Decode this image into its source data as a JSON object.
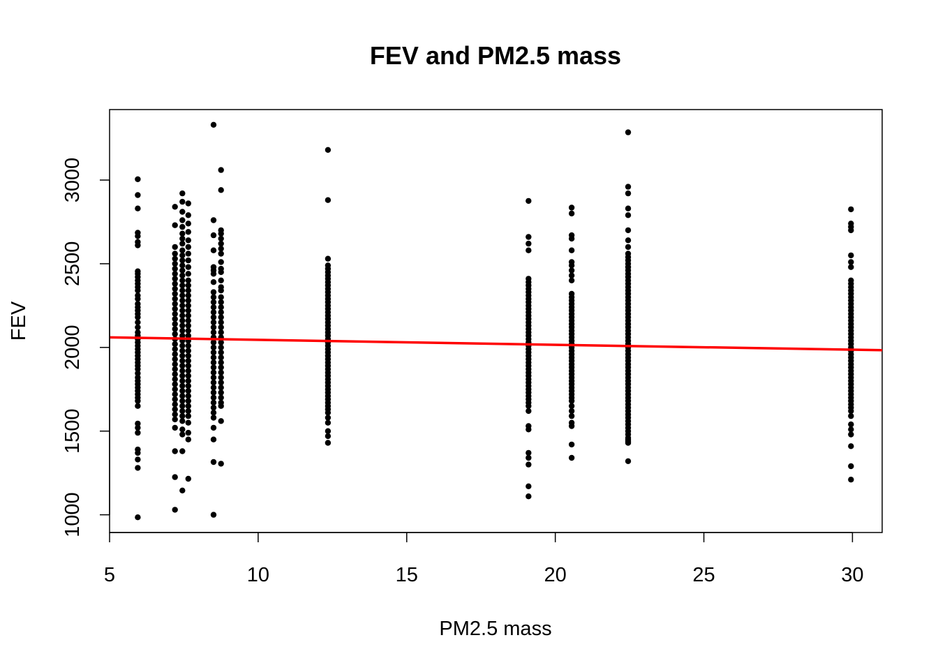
{
  "chart_data": {
    "type": "scatter",
    "title": "FEV and PM2.5 mass",
    "xlabel": "PM2.5 mass",
    "ylabel": "FEV",
    "xlim": [
      5,
      31
    ],
    "ylim": [
      894,
      3421
    ],
    "x_ticks": [
      5,
      10,
      15,
      20,
      25,
      30
    ],
    "y_ticks": [
      1000,
      1500,
      2000,
      2500,
      3000
    ],
    "grid": false,
    "legend": "none",
    "point_color": "#000000",
    "groups": [
      {
        "x": 5.95,
        "values": [
          3005,
          2910,
          2830,
          2685,
          2665,
          2630,
          2610,
          2455,
          2440,
          2420,
          2400,
          2380,
          2360,
          2340,
          2310,
          2290,
          2260,
          2240,
          2220,
          2200,
          2180,
          2150,
          2120,
          2090,
          2070,
          2050,
          2030,
          2010,
          1990,
          1970,
          1950,
          1930,
          1910,
          1890,
          1870,
          1845,
          1820,
          1800,
          1780,
          1760,
          1740,
          1720,
          1700,
          1680,
          1650,
          1545,
          1520,
          1490,
          1390,
          1370,
          1330,
          1280,
          985
        ]
      },
      {
        "x": 7.2,
        "values": [
          2840,
          2730,
          2600,
          2560,
          2530,
          2500,
          2470,
          2440,
          2410,
          2380,
          2350,
          2320,
          2290,
          2260,
          2230,
          2200,
          2170,
          2140,
          2110,
          2080,
          2050,
          2020,
          1990,
          1960,
          1930,
          1900,
          1870,
          1840,
          1810,
          1780,
          1750,
          1720,
          1690,
          1660,
          1630,
          1600,
          1570,
          1520,
          1380,
          1225,
          1030
        ]
      },
      {
        "x": 7.45,
        "values": [
          2920,
          2870,
          2810,
          2760,
          2720,
          2680,
          2650,
          2620,
          2580,
          2550,
          2520,
          2490,
          2460,
          2430,
          2400,
          2370,
          2340,
          2310,
          2280,
          2250,
          2220,
          2190,
          2160,
          2130,
          2100,
          2070,
          2040,
          2010,
          1980,
          1950,
          1920,
          1890,
          1860,
          1830,
          1800,
          1770,
          1740,
          1710,
          1680,
          1650,
          1620,
          1590,
          1560,
          1510,
          1480,
          1380,
          1145
        ]
      },
      {
        "x": 7.65,
        "values": [
          2860,
          2790,
          2740,
          2690,
          2640,
          2600,
          2560,
          2520,
          2480,
          2440,
          2400,
          2370,
          2340,
          2310,
          2280,
          2250,
          2220,
          2190,
          2160,
          2130,
          2100,
          2070,
          2040,
          2010,
          1980,
          1950,
          1920,
          1890,
          1860,
          1830,
          1800,
          1770,
          1740,
          1710,
          1680,
          1650,
          1620,
          1590,
          1550,
          1490,
          1450,
          1215
        ]
      },
      {
        "x": 8.5,
        "values": [
          3330,
          2760,
          2670,
          2580,
          2480,
          2460,
          2440,
          2390,
          2330,
          2300,
          2270,
          2240,
          2210,
          2180,
          2150,
          2120,
          2090,
          2060,
          2030,
          2000,
          1970,
          1940,
          1910,
          1880,
          1850,
          1820,
          1790,
          1760,
          1730,
          1700,
          1670,
          1640,
          1610,
          1580,
          1520,
          1450,
          1315,
          1000
        ]
      },
      {
        "x": 8.75,
        "values": [
          3060,
          2940,
          2700,
          2680,
          2650,
          2620,
          2590,
          2560,
          2510,
          2470,
          2450,
          2400,
          2360,
          2340,
          2300,
          2270,
          2240,
          2210,
          2180,
          2150,
          2120,
          2090,
          2060,
          2030,
          2000,
          1970,
          1940,
          1910,
          1880,
          1850,
          1820,
          1790,
          1760,
          1730,
          1700,
          1670,
          1650,
          1560,
          1305
        ]
      },
      {
        "x": 12.35,
        "values": [
          3180,
          2880,
          2530,
          2490,
          2470,
          2450,
          2430,
          2410,
          2390,
          2370,
          2350,
          2330,
          2310,
          2290,
          2270,
          2250,
          2230,
          2210,
          2190,
          2170,
          2150,
          2130,
          2110,
          2090,
          2070,
          2050,
          2030,
          2010,
          1990,
          1970,
          1950,
          1930,
          1910,
          1890,
          1870,
          1850,
          1830,
          1810,
          1790,
          1770,
          1750,
          1730,
          1710,
          1690,
          1670,
          1650,
          1630,
          1610,
          1580,
          1550,
          1500,
          1470,
          1430
        ]
      },
      {
        "x": 19.1,
        "values": [
          2875,
          2660,
          2620,
          2580,
          2410,
          2390,
          2370,
          2350,
          2330,
          2310,
          2290,
          2270,
          2250,
          2230,
          2210,
          2190,
          2170,
          2150,
          2130,
          2110,
          2090,
          2070,
          2050,
          2030,
          2010,
          1990,
          1970,
          1950,
          1930,
          1910,
          1890,
          1870,
          1850,
          1830,
          1810,
          1790,
          1770,
          1750,
          1730,
          1710,
          1690,
          1670,
          1650,
          1620,
          1530,
          1510,
          1370,
          1340,
          1300,
          1170,
          1110
        ]
      },
      {
        "x": 20.55,
        "values": [
          2835,
          2800,
          2670,
          2650,
          2580,
          2510,
          2490,
          2460,
          2430,
          2400,
          2320,
          2300,
          2280,
          2260,
          2240,
          2220,
          2200,
          2180,
          2160,
          2140,
          2120,
          2100,
          2080,
          2060,
          2040,
          2020,
          2000,
          1980,
          1960,
          1940,
          1920,
          1900,
          1880,
          1860,
          1840,
          1820,
          1800,
          1780,
          1760,
          1740,
          1720,
          1700,
          1680,
          1650,
          1620,
          1590,
          1550,
          1530,
          1420,
          1340
        ]
      },
      {
        "x": 22.45,
        "values": [
          3285,
          2960,
          2920,
          2830,
          2790,
          2700,
          2640,
          2600,
          2560,
          2540,
          2520,
          2500,
          2480,
          2460,
          2440,
          2420,
          2400,
          2380,
          2360,
          2340,
          2320,
          2300,
          2280,
          2260,
          2240,
          2220,
          2200,
          2180,
          2160,
          2140,
          2120,
          2100,
          2080,
          2060,
          2040,
          2020,
          2000,
          1980,
          1960,
          1940,
          1920,
          1900,
          1880,
          1860,
          1840,
          1820,
          1800,
          1780,
          1760,
          1740,
          1720,
          1700,
          1680,
          1660,
          1640,
          1620,
          1600,
          1580,
          1560,
          1540,
          1520,
          1500,
          1480,
          1460,
          1450,
          1440,
          1430,
          1320
        ]
      },
      {
        "x": 29.95,
        "values": [
          2825,
          2740,
          2720,
          2700,
          2550,
          2510,
          2480,
          2400,
          2380,
          2360,
          2340,
          2320,
          2300,
          2280,
          2260,
          2240,
          2220,
          2200,
          2180,
          2160,
          2140,
          2120,
          2100,
          2080,
          2060,
          2040,
          2020,
          2000,
          1980,
          1960,
          1940,
          1920,
          1900,
          1880,
          1860,
          1840,
          1820,
          1800,
          1780,
          1760,
          1740,
          1720,
          1700,
          1680,
          1660,
          1640,
          1620,
          1590,
          1540,
          1510,
          1480,
          1410,
          1290,
          1210
        ]
      }
    ],
    "regression_line": {
      "color": "#ff0000",
      "x": [
        5,
        31
      ],
      "y": [
        2060,
        1983
      ]
    }
  }
}
